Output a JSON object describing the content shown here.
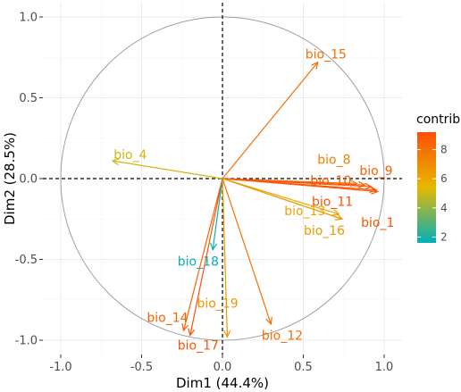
{
  "chart_data": {
    "type": "scatter",
    "subtype": "pca-variable-correlation-circle",
    "xlabel": "Dim1 (44.4%)",
    "ylabel": "Dim2 (28.5%)",
    "xlim": [
      -1.1,
      1.1
    ],
    "ylim": [
      -1.1,
      1.1
    ],
    "xticks": [
      "-1.0",
      "-0.5",
      "0.0",
      "0.5",
      "1.0"
    ],
    "yticks": [
      "-1.0",
      "-0.5",
      "0.0",
      "0.5",
      "1.0"
    ],
    "grid": true,
    "legend": {
      "title": "contrib",
      "position": "right",
      "ticks": [
        2,
        4,
        6,
        8
      ],
      "range": [
        1.6,
        9.2
      ],
      "colors": [
        "#00AFBB",
        "#E7B800",
        "#FC4E07"
      ]
    },
    "variables": [
      {
        "name": "bio_1",
        "x": 0.96,
        "y": -0.08,
        "contrib": 9.0
      },
      {
        "name": "bio_4",
        "x": -0.68,
        "y": 0.11,
        "contrib": 5.0
      },
      {
        "name": "bio_8",
        "x": 0.83,
        "y": -0.03,
        "contrib": 7.5
      },
      {
        "name": "bio_9",
        "x": 0.88,
        "y": -0.04,
        "contrib": 8.5
      },
      {
        "name": "bio_10",
        "x": 0.92,
        "y": -0.05,
        "contrib": 9.0
      },
      {
        "name": "bio_11",
        "x": 0.95,
        "y": -0.07,
        "contrib": 9.0
      },
      {
        "name": "bio_13",
        "x": 0.72,
        "y": -0.22,
        "contrib": 6.0
      },
      {
        "name": "bio_14",
        "x": -0.24,
        "y": -0.94,
        "contrib": 8.5
      },
      {
        "name": "bio_15",
        "x": 0.59,
        "y": 0.72,
        "contrib": 8.0
      },
      {
        "name": "bio_16",
        "x": 0.74,
        "y": -0.25,
        "contrib": 6.5
      },
      {
        "name": "bio_17",
        "x": -0.2,
        "y": -0.97,
        "contrib": 9.0
      },
      {
        "name": "bio_18",
        "x": -0.06,
        "y": -0.44,
        "contrib": 1.8
      },
      {
        "name": "bio_19",
        "x": 0.03,
        "y": -0.98,
        "contrib": 6.5
      },
      {
        "name": "bio_12",
        "x": 0.3,
        "y": -0.9,
        "contrib": 8.0
      }
    ],
    "labels": [
      {
        "name": "bio_1",
        "lx": 0.96,
        "ly": -0.27
      },
      {
        "name": "bio_4",
        "lx": -0.57,
        "ly": 0.15
      },
      {
        "name": "bio_8",
        "lx": 0.69,
        "ly": 0.12
      },
      {
        "name": "bio_9",
        "lx": 0.95,
        "ly": 0.05
      },
      {
        "name": "bio_10",
        "lx": 0.67,
        "ly": -0.01
      },
      {
        "name": "bio_11",
        "lx": 0.68,
        "ly": -0.14
      },
      {
        "name": "bio_13",
        "lx": 0.51,
        "ly": -0.2
      },
      {
        "name": "bio_14",
        "lx": -0.34,
        "ly": -0.86
      },
      {
        "name": "bio_15",
        "lx": 0.64,
        "ly": 0.77
      },
      {
        "name": "bio_16",
        "lx": 0.63,
        "ly": -0.32
      },
      {
        "name": "bio_17",
        "lx": -0.15,
        "ly": -1.03
      },
      {
        "name": "bio_18",
        "lx": -0.15,
        "ly": -0.51
      },
      {
        "name": "bio_19",
        "lx": -0.03,
        "ly": -0.77
      },
      {
        "name": "bio_12",
        "lx": 0.37,
        "ly": -0.97
      }
    ]
  }
}
